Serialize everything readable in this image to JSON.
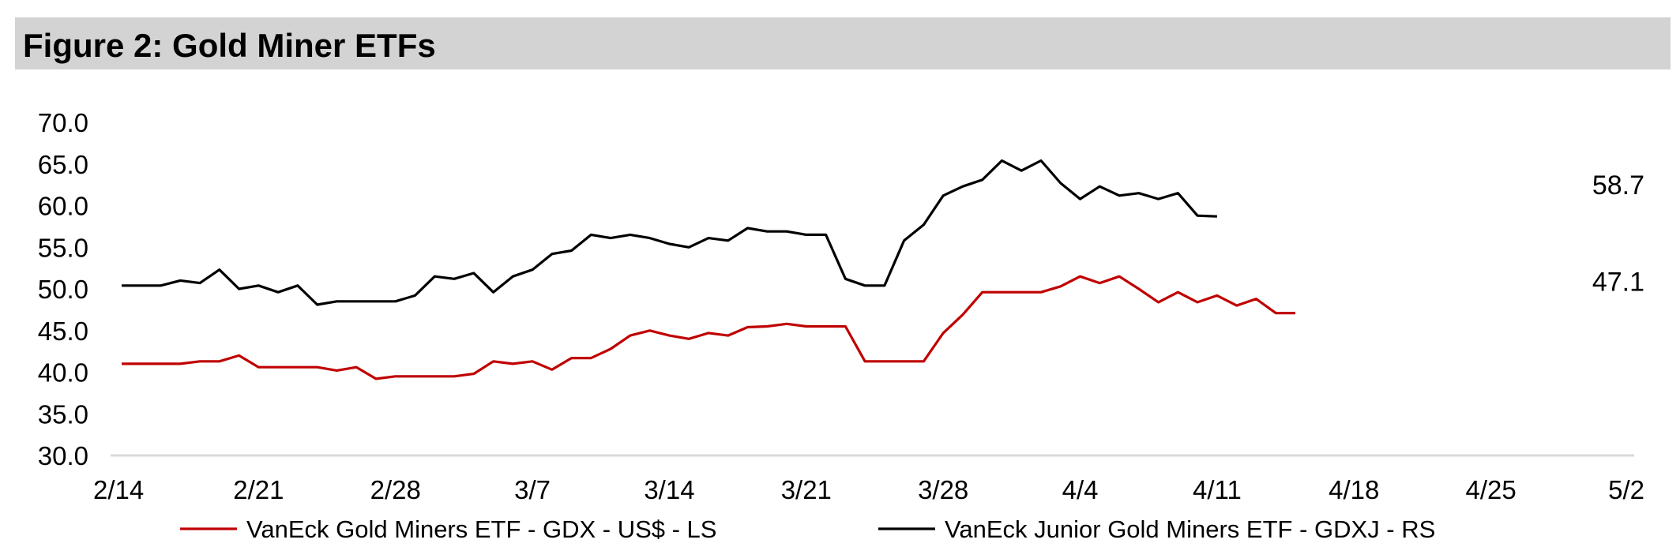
{
  "figure": {
    "title": "Figure 2: Gold Miner ETFs"
  },
  "colors": {
    "gdx": "#c00000",
    "gdxj": "#000000",
    "axis": "#d9d9d9",
    "title_bg": "#d3d3d3"
  },
  "chart_data": {
    "type": "line",
    "title": "Figure 2: Gold Miner ETFs",
    "xlabel": "",
    "ylabel": "",
    "ylim": [
      30,
      70
    ],
    "grid": false,
    "legend_position": "bottom",
    "y_ticks": [
      "30.0",
      "35.0",
      "40.0",
      "45.0",
      "50.0",
      "55.0",
      "60.0",
      "65.0",
      "70.0"
    ],
    "x_tick_labels": [
      "2/14",
      "2/21",
      "2/28",
      "3/7",
      "3/14",
      "3/21",
      "3/28",
      "4/4",
      "4/11",
      "4/18",
      "4/25",
      "5/2"
    ],
    "x_ticks_day": [
      0,
      7,
      14,
      21,
      28,
      35,
      42,
      49,
      56,
      63,
      70,
      77
    ],
    "series": [
      {
        "name": "VanEck Gold Miners ETF  - GDX  - US$ - LS",
        "color": "#c00000",
        "end_label": "47.1",
        "points": [
          [
            0,
            41.0
          ],
          [
            1,
            41.0
          ],
          [
            2,
            41.0
          ],
          [
            3,
            41.0
          ],
          [
            4,
            41.3
          ],
          [
            5,
            41.3
          ],
          [
            6,
            42.0
          ],
          [
            7,
            40.6
          ],
          [
            8,
            40.6
          ],
          [
            9,
            40.6
          ],
          [
            10,
            40.6
          ],
          [
            11,
            40.2
          ],
          [
            12,
            40.6
          ],
          [
            13,
            39.2
          ],
          [
            14,
            39.5
          ],
          [
            15,
            39.5
          ],
          [
            16,
            39.5
          ],
          [
            17,
            39.5
          ],
          [
            18,
            39.8
          ],
          [
            19,
            41.3
          ],
          [
            20,
            41.0
          ],
          [
            21,
            41.3
          ],
          [
            22,
            40.3
          ],
          [
            23,
            41.7
          ],
          [
            24,
            41.7
          ],
          [
            25,
            42.8
          ],
          [
            26,
            44.4
          ],
          [
            27,
            45.0
          ],
          [
            28,
            44.4
          ],
          [
            29,
            44.0
          ],
          [
            30,
            44.7
          ],
          [
            31,
            44.4
          ],
          [
            32,
            45.4
          ],
          [
            33,
            45.5
          ],
          [
            34,
            45.8
          ],
          [
            35,
            45.5
          ],
          [
            36,
            45.5
          ],
          [
            37,
            45.5
          ],
          [
            38,
            41.3
          ],
          [
            39,
            41.3
          ],
          [
            40,
            41.3
          ],
          [
            41,
            41.3
          ],
          [
            42,
            44.7
          ],
          [
            43,
            46.9
          ],
          [
            44,
            49.6
          ],
          [
            45,
            49.6
          ],
          [
            46,
            49.6
          ],
          [
            47,
            49.6
          ],
          [
            48,
            50.3
          ],
          [
            49,
            51.5
          ],
          [
            50,
            50.7
          ],
          [
            51,
            51.5
          ],
          [
            52,
            50.0
          ],
          [
            53,
            48.4
          ],
          [
            54,
            49.6
          ],
          [
            55,
            48.4
          ],
          [
            56,
            49.2
          ],
          [
            57,
            48.0
          ],
          [
            58,
            48.8
          ],
          [
            59,
            47.1
          ],
          [
            60,
            47.1
          ]
        ]
      },
      {
        "name": "VanEck Junior Gold Miners ETF - GDXJ - RS",
        "color": "#000000",
        "end_label": "58.7",
        "points": [
          [
            0,
            50.4
          ],
          [
            1,
            50.4
          ],
          [
            2,
            50.4
          ],
          [
            3,
            51.0
          ],
          [
            4,
            50.7
          ],
          [
            5,
            52.3
          ],
          [
            6,
            50.0
          ],
          [
            7,
            50.4
          ],
          [
            8,
            49.6
          ],
          [
            9,
            50.4
          ],
          [
            10,
            48.1
          ],
          [
            11,
            48.5
          ],
          [
            12,
            48.5
          ],
          [
            13,
            48.5
          ],
          [
            14,
            48.5
          ],
          [
            15,
            49.2
          ],
          [
            16,
            51.5
          ],
          [
            17,
            51.2
          ],
          [
            18,
            51.9
          ],
          [
            19,
            49.6
          ],
          [
            20,
            51.5
          ],
          [
            21,
            52.3
          ],
          [
            22,
            54.2
          ],
          [
            23,
            54.6
          ],
          [
            24,
            56.5
          ],
          [
            25,
            56.1
          ],
          [
            26,
            56.5
          ],
          [
            27,
            56.1
          ],
          [
            28,
            55.4
          ],
          [
            29,
            55.0
          ],
          [
            30,
            56.1
          ],
          [
            31,
            55.8
          ],
          [
            32,
            57.3
          ],
          [
            33,
            56.9
          ],
          [
            34,
            56.9
          ],
          [
            35,
            56.5
          ],
          [
            36,
            56.5
          ],
          [
            37,
            51.2
          ],
          [
            38,
            50.4
          ],
          [
            39,
            50.4
          ],
          [
            40,
            55.8
          ],
          [
            41,
            57.7
          ],
          [
            42,
            61.2
          ],
          [
            43,
            62.3
          ],
          [
            44,
            63.1
          ],
          [
            45,
            65.4
          ],
          [
            46,
            64.2
          ],
          [
            47,
            65.4
          ],
          [
            48,
            62.7
          ],
          [
            49,
            60.8
          ],
          [
            50,
            62.3
          ],
          [
            51,
            61.2
          ],
          [
            52,
            61.5
          ],
          [
            53,
            60.8
          ],
          [
            54,
            61.5
          ],
          [
            55,
            58.8
          ],
          [
            56,
            58.7
          ]
        ]
      }
    ]
  }
}
